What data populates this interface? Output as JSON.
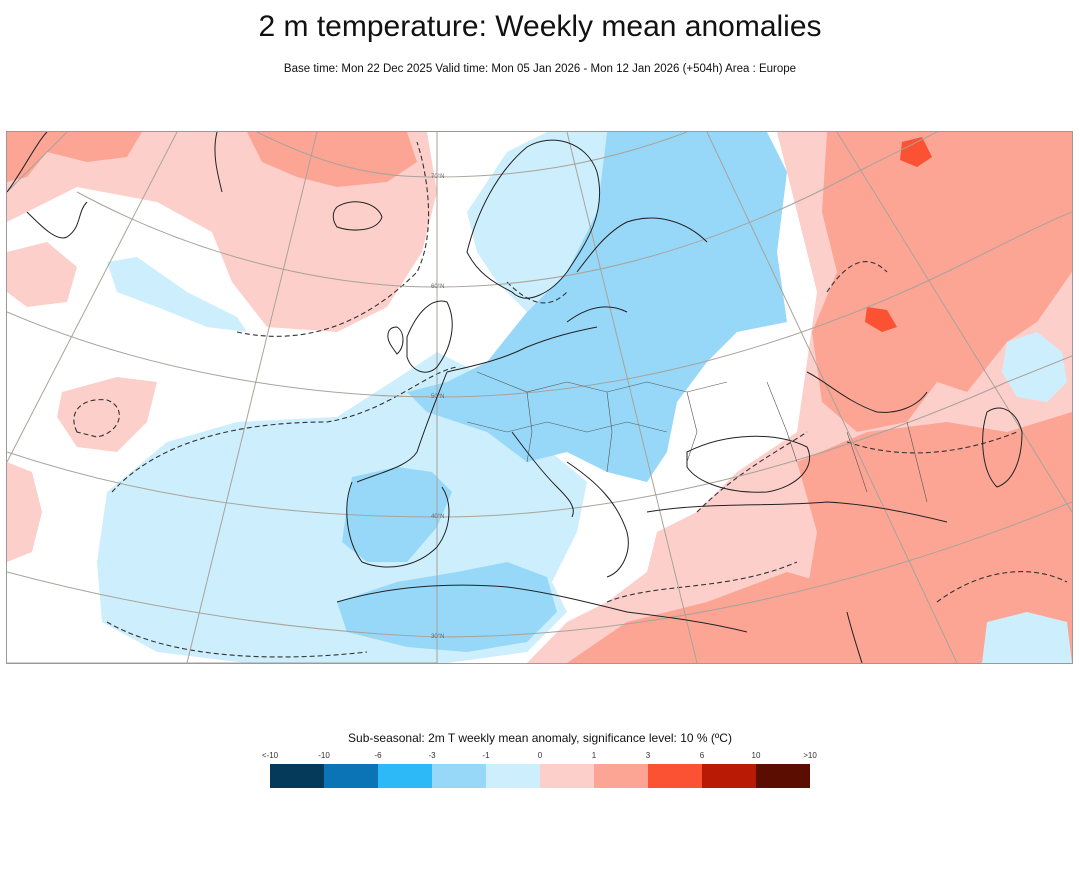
{
  "header": {
    "title": "2 m temperature: Weekly mean anomalies",
    "subtitle": "Base time: Mon 22 Dec 2025 Valid time: Mon 05 Jan 2026 - Mon 12 Jan 2026 (+504h) Area : Europe"
  },
  "map": {
    "lat_labels": [
      "70°N",
      "60°N",
      "50°N",
      "40°N",
      "30°N"
    ]
  },
  "legend": {
    "title": "Sub-seasonal: 2m T weekly mean anomaly, significance level: 10 % (ºC)",
    "ticks": [
      "<-10",
      "-10",
      "-6",
      "-3",
      "-1",
      "0",
      "1",
      "3",
      "6",
      "10",
      ">10"
    ],
    "colors": [
      "#053a5a",
      "#0a74b7",
      "#2db8f8",
      "#97d8f8",
      "#cdeefc",
      "#fdcfcb",
      "#fca595",
      "#fb5233",
      "#b81a06",
      "#5c0d02"
    ]
  }
}
